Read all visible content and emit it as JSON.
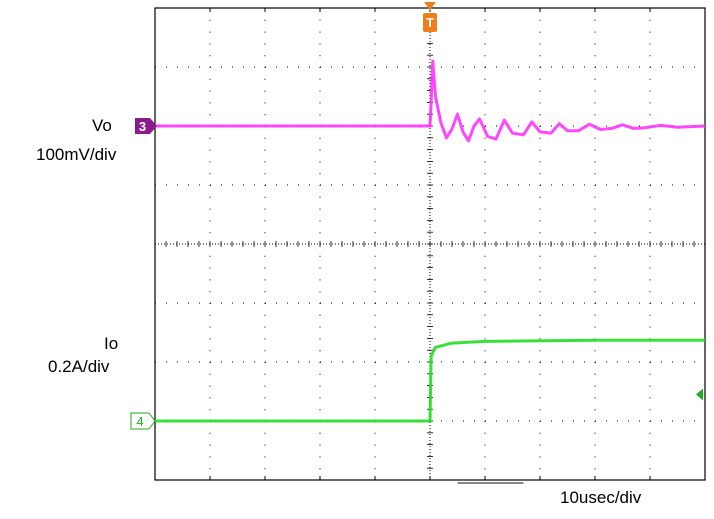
{
  "chart_data": {
    "type": "line",
    "title": "",
    "xlabel": "10usec/div",
    "grid": true,
    "x_divisions": 10,
    "y_divisions": 8,
    "x_unit": "div",
    "y_unit": "div",
    "trigger_marker": "T",
    "trigger_x_div": 5,
    "series": [
      {
        "name": "Vo",
        "scale": "100mV/div",
        "channel": "3",
        "color": "#ff33ff",
        "points": [
          [
            0,
            2.0
          ],
          [
            5.0,
            2.0
          ],
          [
            5.02,
            1.6
          ],
          [
            5.05,
            0.9
          ],
          [
            5.1,
            1.5
          ],
          [
            5.2,
            1.95
          ],
          [
            5.3,
            2.2
          ],
          [
            5.4,
            2.05
          ],
          [
            5.5,
            1.8
          ],
          [
            5.6,
            2.1
          ],
          [
            5.7,
            2.25
          ],
          [
            5.8,
            2.0
          ],
          [
            5.9,
            1.88
          ],
          [
            6.05,
            2.18
          ],
          [
            6.2,
            2.22
          ],
          [
            6.35,
            1.9
          ],
          [
            6.5,
            2.12
          ],
          [
            6.7,
            2.15
          ],
          [
            6.85,
            1.93
          ],
          [
            7.0,
            2.1
          ],
          [
            7.2,
            2.12
          ],
          [
            7.35,
            1.96
          ],
          [
            7.5,
            2.08
          ],
          [
            7.7,
            2.08
          ],
          [
            7.9,
            1.97
          ],
          [
            8.1,
            2.06
          ],
          [
            8.3,
            2.04
          ],
          [
            8.5,
            1.98
          ],
          [
            8.7,
            2.04
          ],
          [
            8.9,
            2.03
          ],
          [
            9.2,
            1.99
          ],
          [
            9.5,
            2.02
          ],
          [
            10,
            2.0
          ]
        ]
      },
      {
        "name": "Io",
        "scale": "0.2A/div",
        "channel": "4",
        "color": "#22dd22",
        "points": [
          [
            0,
            7.0
          ],
          [
            5.0,
            7.0
          ],
          [
            5.02,
            5.9
          ],
          [
            5.1,
            5.75
          ],
          [
            5.4,
            5.68
          ],
          [
            6.0,
            5.65
          ],
          [
            8.0,
            5.63
          ],
          [
            10,
            5.63
          ]
        ]
      }
    ]
  },
  "labels": {
    "vo_name": "Vo",
    "vo_scale": "100mV/div",
    "io_name": "Io",
    "io_scale": "0.2A/div",
    "timebase": "10usec/div",
    "ch3_marker": "3",
    "ch4_marker": "4",
    "trigger": "T"
  },
  "colors": {
    "grid": "#000000",
    "ch3": "#ff33ff",
    "ch3_marker": "#8a1c8a",
    "ch4": "#22dd22",
    "ch4_marker_text": "#22aa22",
    "trigger": "#f07f1a",
    "right_arrow": "#22aa22"
  }
}
